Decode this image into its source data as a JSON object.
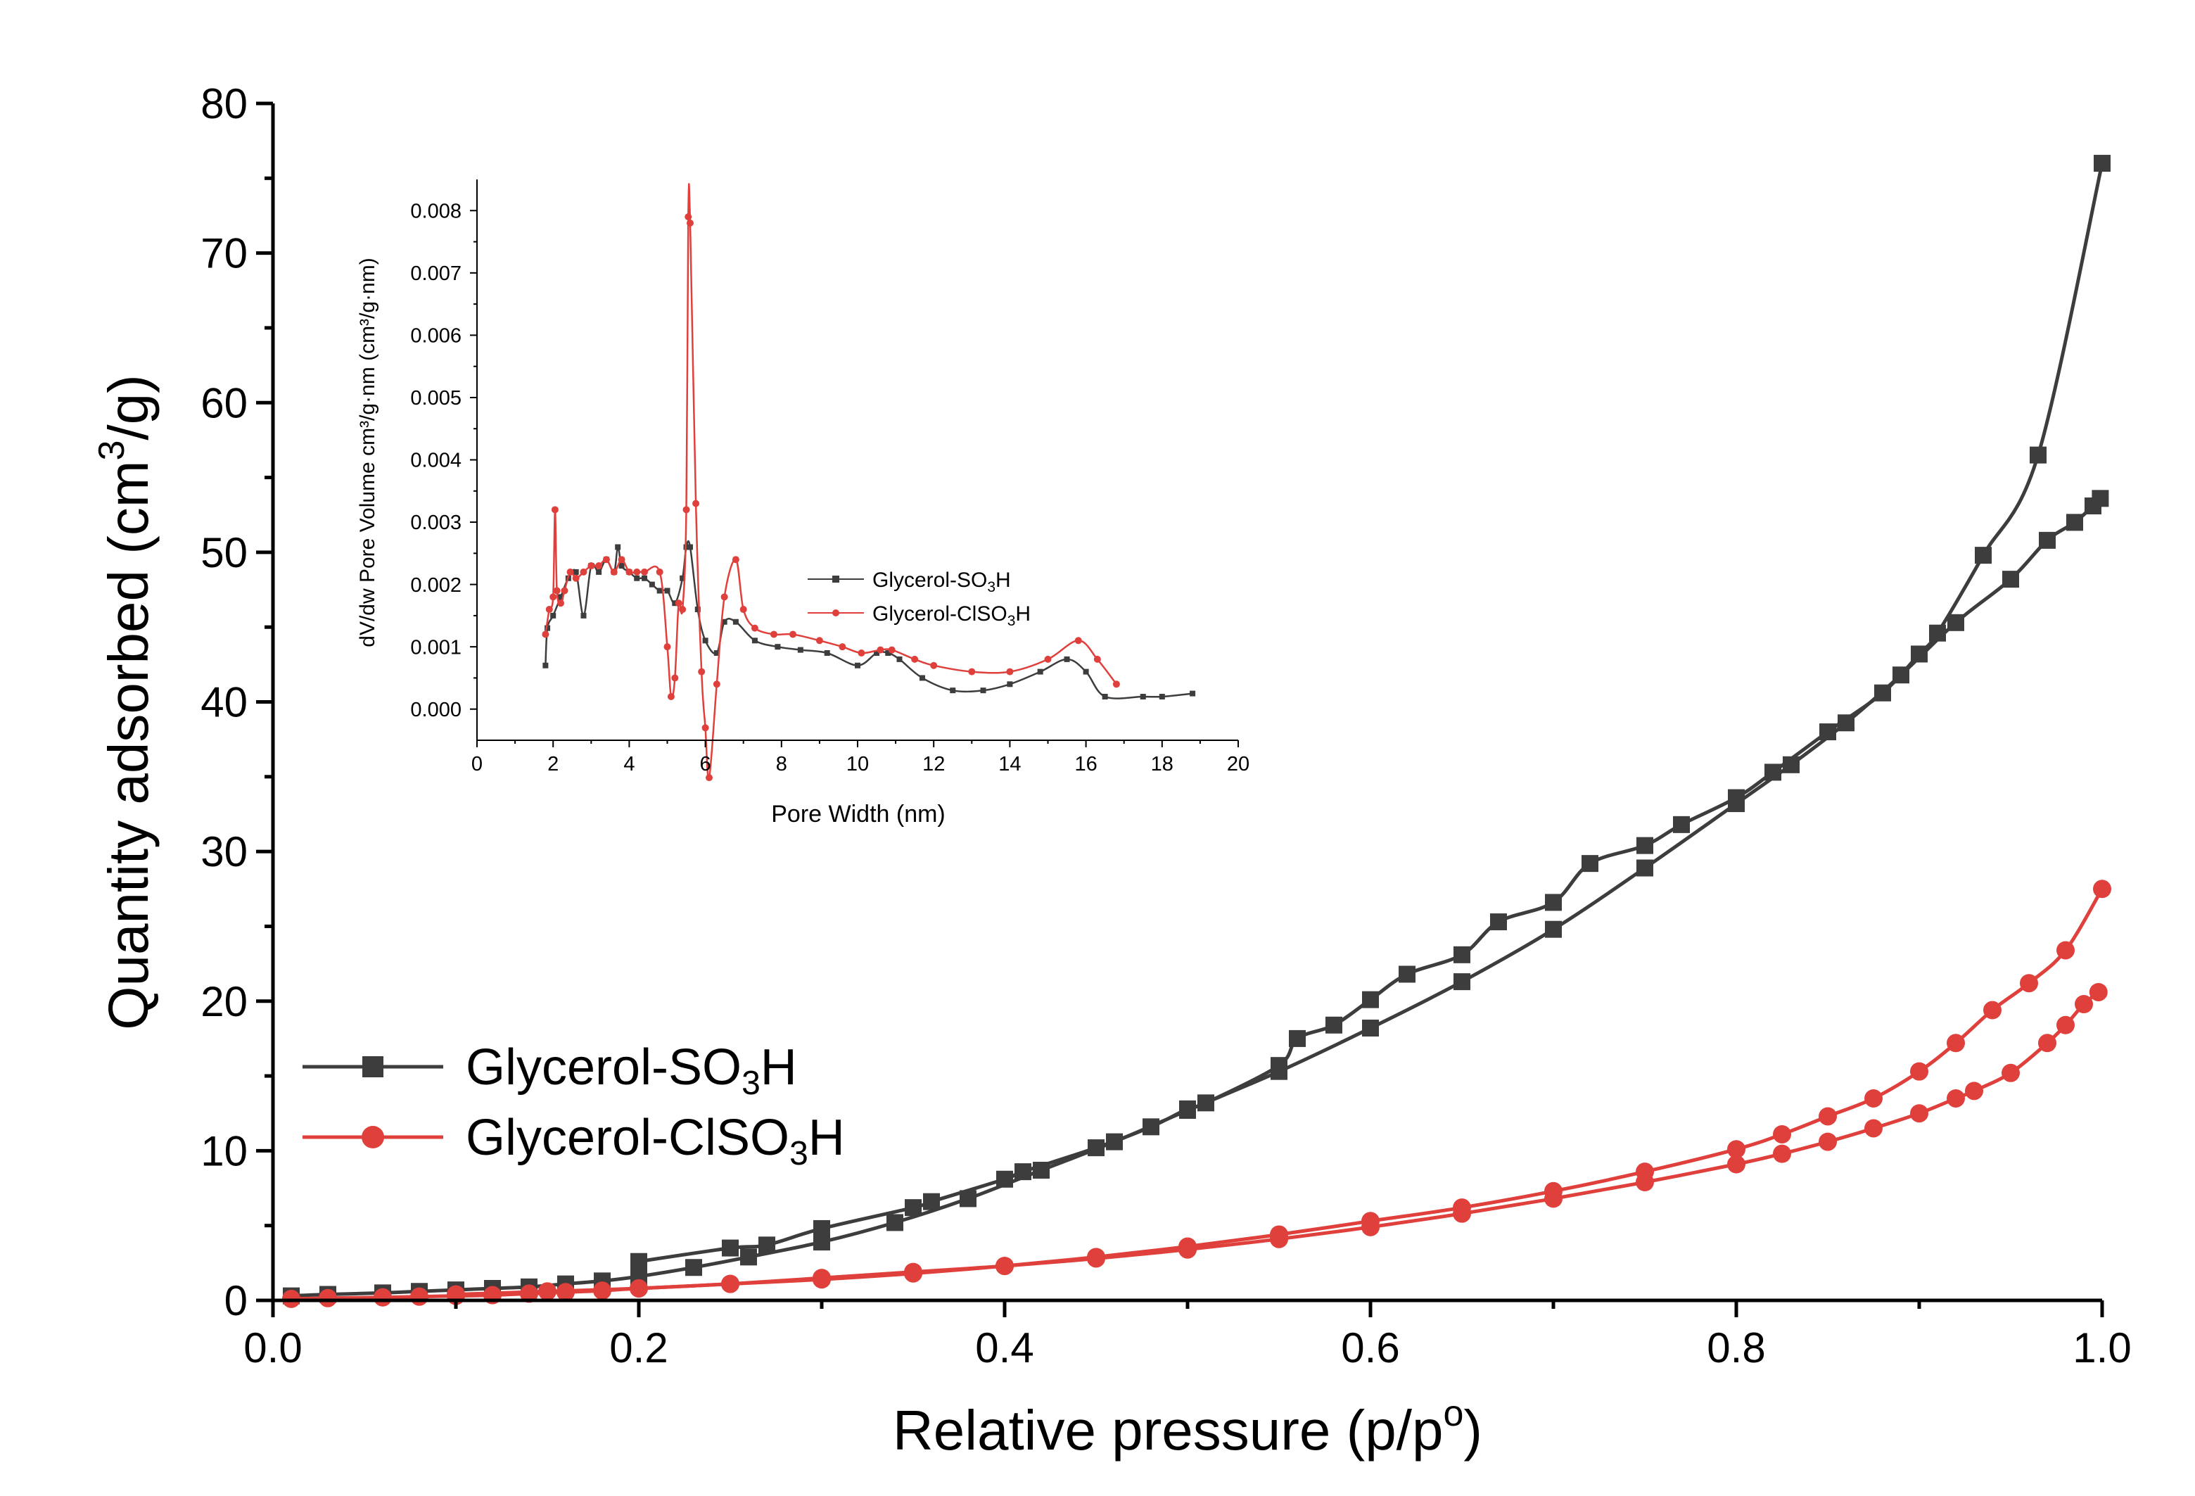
{
  "colors": {
    "series1": "#3d3d3d",
    "series2": "#e0403c",
    "axis": "#000000"
  },
  "chart_data": [
    {
      "type": "line",
      "name": "main",
      "title": "",
      "xlabel": "Relative pressure (p/p",
      "xlabel_sup": "o",
      "xlabel_end": ")",
      "ylabel": "Quantity adsorbed (cm",
      "ylabel_sup": "3",
      "ylabel_end": "/g)",
      "xlim": [
        0,
        1
      ],
      "ylim": [
        0,
        80
      ],
      "x_ticks": [
        {
          "v": 0,
          "label": "0.0"
        },
        {
          "v": 0.2,
          "label": "0.2"
        },
        {
          "v": 0.4,
          "label": "0.4"
        },
        {
          "v": 0.6,
          "label": "0.6"
        },
        {
          "v": 0.8,
          "label": "0.8"
        },
        {
          "v": 1.0,
          "label": "1.0"
        }
      ],
      "y_ticks": [
        {
          "v": 0,
          "label": "0"
        },
        {
          "v": 10,
          "label": "10"
        },
        {
          "v": 20,
          "label": "20"
        },
        {
          "v": 30,
          "label": "30"
        },
        {
          "v": 40,
          "label": "40"
        },
        {
          "v": 50,
          "label": "50"
        },
        {
          "v": 60,
          "label": "60"
        },
        {
          "v": 70,
          "label": "70"
        },
        {
          "v": 80,
          "label": "80"
        }
      ],
      "legend": {
        "position": "lower-left",
        "entries": [
          {
            "pre": "Glycerol-SO",
            "sub": "3",
            "post": "H",
            "marker": "square",
            "colorKey": "series1"
          },
          {
            "pre": "Glycerol-ClSO",
            "sub": "3",
            "post": "H",
            "marker": "circle",
            "colorKey": "series2"
          }
        ]
      },
      "series": [
        {
          "name": "Glycerol-SO3H (adsorption)",
          "colorKey": "series1",
          "marker": "square",
          "x": [
            0.01,
            0.03,
            0.06,
            0.08,
            0.1,
            0.12,
            0.14,
            0.16,
            0.18,
            0.2,
            0.23,
            0.26,
            0.3,
            0.34,
            0.38,
            0.42,
            0.46,
            0.5,
            0.55,
            0.6,
            0.65,
            0.7,
            0.75,
            0.8,
            0.83,
            0.86,
            0.89,
            0.92,
            0.95,
            0.97,
            0.985,
            0.995,
            0.999
          ],
          "y": [
            0.3,
            0.4,
            0.5,
            0.6,
            0.7,
            0.8,
            0.9,
            1.1,
            1.3,
            1.6,
            2.2,
            2.9,
            3.9,
            5.2,
            6.8,
            8.7,
            10.6,
            12.7,
            15.3,
            18.2,
            21.3,
            24.8,
            28.9,
            33.2,
            35.8,
            38.6,
            41.8,
            45.3,
            48.2,
            50.8,
            52.0,
            53.1,
            53.6
          ]
        },
        {
          "name": "Glycerol-SO3H (desorption)",
          "colorKey": "series1",
          "marker": "square",
          "x": [
            1.0,
            0.965,
            0.935,
            0.91,
            0.9,
            0.88,
            0.85,
            0.82,
            0.8,
            0.77,
            0.75,
            0.72,
            0.7,
            0.67,
            0.65,
            0.62,
            0.6,
            0.58,
            0.56,
            0.55,
            0.51,
            0.5,
            0.48,
            0.45,
            0.41,
            0.4,
            0.36,
            0.35,
            0.3,
            0.27,
            0.25,
            0.2
          ],
          "y": [
            76,
            56.5,
            49.8,
            44.6,
            43.2,
            40.6,
            38,
            35.3,
            33.6,
            31.8,
            30.4,
            29.2,
            26.6,
            25.3,
            23.1,
            21.8,
            20.1,
            18.4,
            17.5,
            15.7,
            13.2,
            12.8,
            11.6,
            10.2,
            8.6,
            8.1,
            6.6,
            6.2,
            4.8,
            3.7,
            3.5,
            2.6
          ]
        },
        {
          "name": "Glycerol-ClSO3H (adsorption)",
          "colorKey": "series2",
          "marker": "circle",
          "x": [
            0.01,
            0.03,
            0.06,
            0.08,
            0.1,
            0.12,
            0.14,
            0.16,
            0.18,
            0.2,
            0.25,
            0.3,
            0.35,
            0.4,
            0.45,
            0.5,
            0.55,
            0.6,
            0.65,
            0.7,
            0.75,
            0.8,
            0.825,
            0.85,
            0.875,
            0.9,
            0.92,
            0.93,
            0.95,
            0.97,
            0.98,
            0.99,
            0.998
          ],
          "y": [
            0.1,
            0.15,
            0.2,
            0.25,
            0.3,
            0.35,
            0.45,
            0.55,
            0.65,
            0.8,
            1.1,
            1.5,
            1.9,
            2.3,
            2.8,
            3.4,
            4.1,
            4.9,
            5.8,
            6.8,
            7.9,
            9.1,
            9.8,
            10.6,
            11.5,
            12.5,
            13.5,
            14.0,
            15.2,
            17.2,
            18.4,
            19.8,
            20.6
          ]
        },
        {
          "name": "Glycerol-ClSO3H (desorption)",
          "colorKey": "series2",
          "marker": "circle",
          "x": [
            1.0,
            0.98,
            0.96,
            0.94,
            0.92,
            0.9,
            0.875,
            0.85,
            0.825,
            0.8,
            0.75,
            0.7,
            0.65,
            0.6,
            0.55,
            0.5,
            0.45,
            0.4,
            0.35,
            0.3,
            0.25,
            0.2,
            0.15,
            0.1
          ],
          "y": [
            27.5,
            23.4,
            21.2,
            19.4,
            17.2,
            15.3,
            13.5,
            12.3,
            11.1,
            10.1,
            8.6,
            7.3,
            6.2,
            5.3,
            4.4,
            3.6,
            2.9,
            2.3,
            1.8,
            1.4,
            1.1,
            0.8,
            0.6,
            0.4
          ]
        }
      ]
    },
    {
      "type": "line",
      "name": "inset",
      "xlabel": "Pore Width (nm)",
      "ylabel": "dV/dw Pore Volume cm³/g·nm (cm³/g·nm)",
      "xlim": [
        0,
        20
      ],
      "ylim": [
        -0.0005,
        0.0085
      ],
      "x_ticks": [
        {
          "v": 0,
          "label": "0"
        },
        {
          "v": 2,
          "label": "2"
        },
        {
          "v": 4,
          "label": "4"
        },
        {
          "v": 6,
          "label": "6"
        },
        {
          "v": 8,
          "label": "8"
        },
        {
          "v": 10,
          "label": "10"
        },
        {
          "v": 12,
          "label": "12"
        },
        {
          "v": 14,
          "label": "14"
        },
        {
          "v": 16,
          "label": "16"
        },
        {
          "v": 18,
          "label": "18"
        },
        {
          "v": 20,
          "label": "20"
        }
      ],
      "y_ticks": [
        {
          "v": 0,
          "label": "0.000"
        },
        {
          "v": 0.001,
          "label": "0.001"
        },
        {
          "v": 0.002,
          "label": "0.002"
        },
        {
          "v": 0.003,
          "label": "0.003"
        },
        {
          "v": 0.004,
          "label": "0.004"
        },
        {
          "v": 0.005,
          "label": "0.005"
        },
        {
          "v": 0.006,
          "label": "0.006"
        },
        {
          "v": 0.007,
          "label": "0.007"
        },
        {
          "v": 0.008,
          "label": "0.008"
        }
      ],
      "legend": {
        "position": "right",
        "entries": [
          {
            "pre": "Glycerol-SO",
            "sub": "3",
            "post": "H",
            "marker": "square",
            "colorKey": "series1"
          },
          {
            "pre": "Glycerol-ClSO",
            "sub": "3",
            "post": "H",
            "marker": "circle",
            "colorKey": "series2"
          }
        ]
      },
      "series": [
        {
          "name": "Glycerol-SO3H",
          "colorKey": "series1",
          "marker": "square",
          "x": [
            1.8,
            1.85,
            2.0,
            2.2,
            2.4,
            2.6,
            2.8,
            3.0,
            3.2,
            3.4,
            3.6,
            3.7,
            3.8,
            4.0,
            4.2,
            4.4,
            4.6,
            4.8,
            5.0,
            5.2,
            5.4,
            5.5,
            5.6,
            5.8,
            6.0,
            6.3,
            6.5,
            6.8,
            7.3,
            7.9,
            8.5,
            9.2,
            10.0,
            10.5,
            10.8,
            11.1,
            11.7,
            12.5,
            13.3,
            14.0,
            14.8,
            15.5,
            16.0,
            16.5,
            17.5,
            18.0,
            18.8
          ],
          "y": [
            0.0007,
            0.0013,
            0.0015,
            0.0018,
            0.0021,
            0.0022,
            0.0015,
            0.0023,
            0.0022,
            0.0024,
            0.0022,
            0.0026,
            0.0023,
            0.0022,
            0.0021,
            0.0021,
            0.002,
            0.0019,
            0.0019,
            0.0017,
            0.0021,
            0.0026,
            0.0026,
            0.0016,
            0.0011,
            0.0009,
            0.0014,
            0.0014,
            0.0011,
            0.001,
            0.00095,
            0.0009,
            0.0007,
            0.0009,
            0.0009,
            0.0008,
            0.0005,
            0.0003,
            0.0003,
            0.0004,
            0.0006,
            0.0008,
            0.0006,
            0.0002,
            0.0002,
            0.0002,
            0.00025
          ]
        },
        {
          "name": "Glycerol-ClSO3H",
          "colorKey": "series2",
          "marker": "circle",
          "x": [
            1.8,
            1.9,
            2.0,
            2.05,
            2.1,
            2.2,
            2.3,
            2.45,
            2.6,
            2.8,
            3.0,
            3.2,
            3.4,
            3.6,
            3.8,
            4.0,
            4.2,
            4.4,
            4.8,
            5.0,
            5.1,
            5.2,
            5.3,
            5.4,
            5.5,
            5.55,
            5.6,
            5.75,
            5.9,
            6.0,
            6.1,
            6.3,
            6.5,
            6.8,
            7.0,
            7.3,
            7.8,
            8.3,
            9.0,
            9.6,
            10.1,
            10.6,
            10.9,
            11.5,
            12.0,
            13.0,
            14.0,
            15.0,
            15.8,
            16.3,
            16.8
          ],
          "y": [
            0.0012,
            0.0016,
            0.0018,
            0.0032,
            0.0019,
            0.0017,
            0.0019,
            0.0022,
            0.0021,
            0.0022,
            0.0023,
            0.0023,
            0.0024,
            0.0022,
            0.0024,
            0.0022,
            0.0022,
            0.0022,
            0.0022,
            0.001,
            0.0002,
            0.0005,
            0.0017,
            0.0016,
            0.0032,
            0.0079,
            0.0078,
            0.0033,
            0.0006,
            -0.0003,
            -0.0011,
            0.0004,
            0.0018,
            0.0024,
            0.0016,
            0.0013,
            0.0012,
            0.0012,
            0.0011,
            0.001,
            0.0009,
            0.00095,
            0.00095,
            0.0008,
            0.0007,
            0.0006,
            0.0006,
            0.0008,
            0.0011,
            0.0008,
            0.0004
          ]
        }
      ]
    }
  ]
}
